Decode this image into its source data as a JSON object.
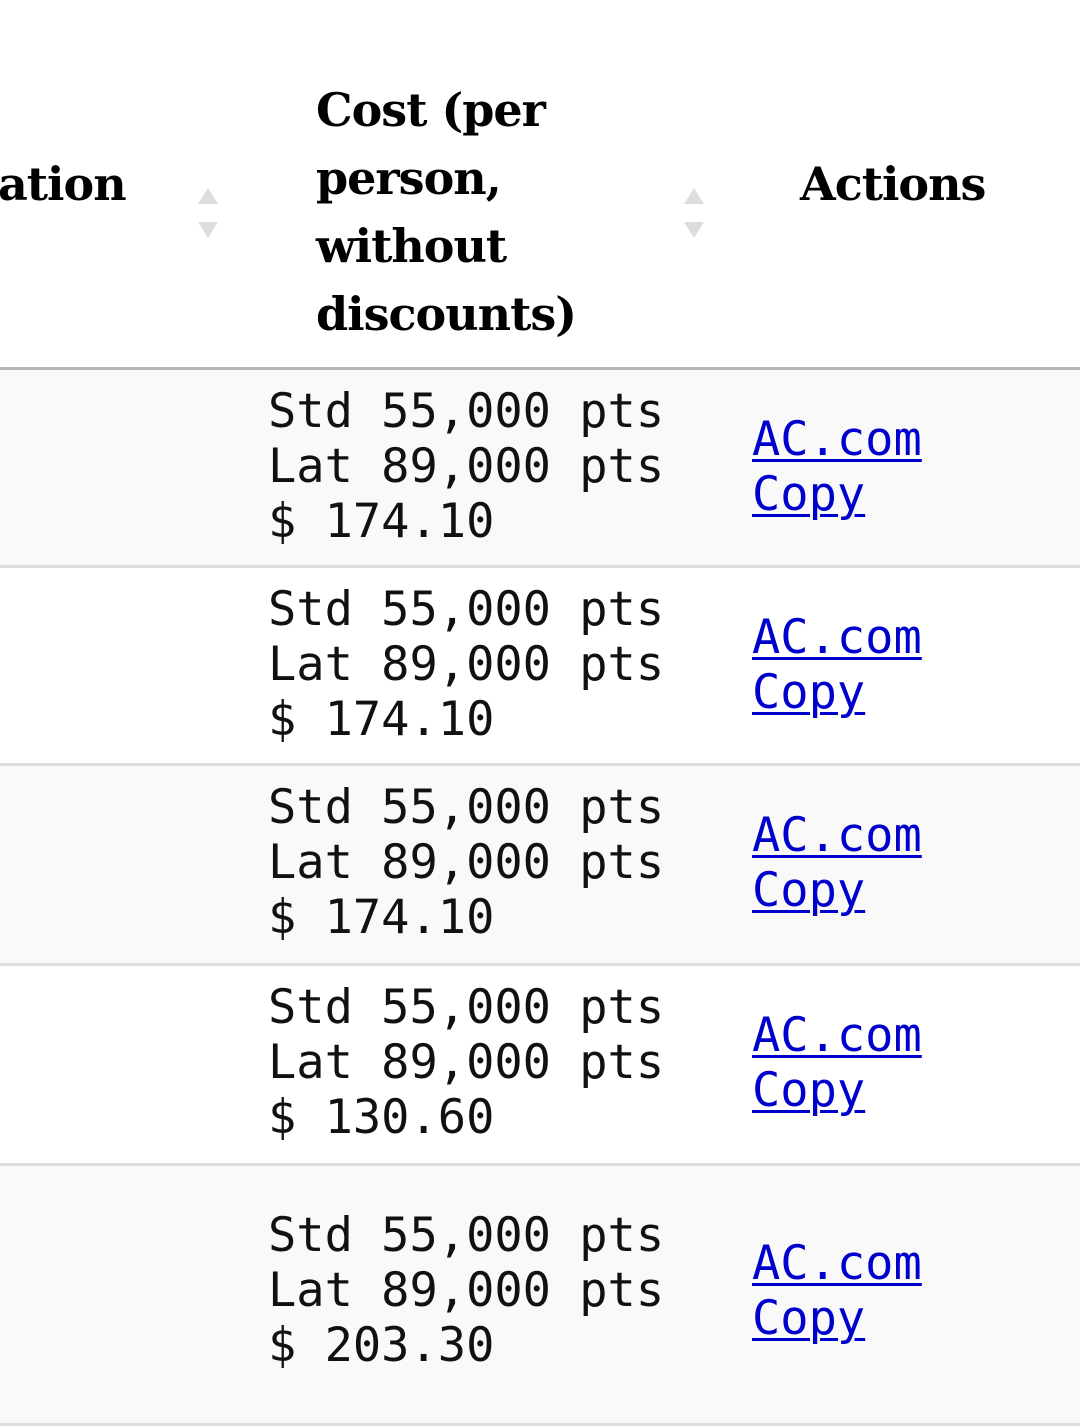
{
  "header": {
    "col_partial": "ation",
    "col_cost": "Cost (per person, without discounts)",
    "col_actions": "Actions"
  },
  "rows": [
    {
      "std": "Std 55,000 pts",
      "lat": "Lat 89,000 pts",
      "cash": "$ 174.10",
      "link1": "AC.com",
      "link2": "Copy"
    },
    {
      "std": "Std 55,000 pts",
      "lat": "Lat 89,000 pts",
      "cash": "$ 174.10",
      "link1": "AC.com",
      "link2": "Copy"
    },
    {
      "std": "Std 55,000 pts",
      "lat": "Lat 89,000 pts",
      "cash": "$ 174.10",
      "link1": "AC.com",
      "link2": "Copy"
    },
    {
      "std": "Std 55,000 pts",
      "lat": "Lat 89,000 pts",
      "cash": "$ 130.60",
      "link1": "AC.com",
      "link2": "Copy"
    },
    {
      "std": "Std 55,000 pts",
      "lat": "Lat 89,000 pts",
      "cash": "$ 203.30",
      "link1": "AC.com",
      "link2": "Copy"
    }
  ],
  "colors": {
    "link": "#0000cc",
    "row_alt": "#f9f9f9",
    "border": "#dddddd"
  }
}
